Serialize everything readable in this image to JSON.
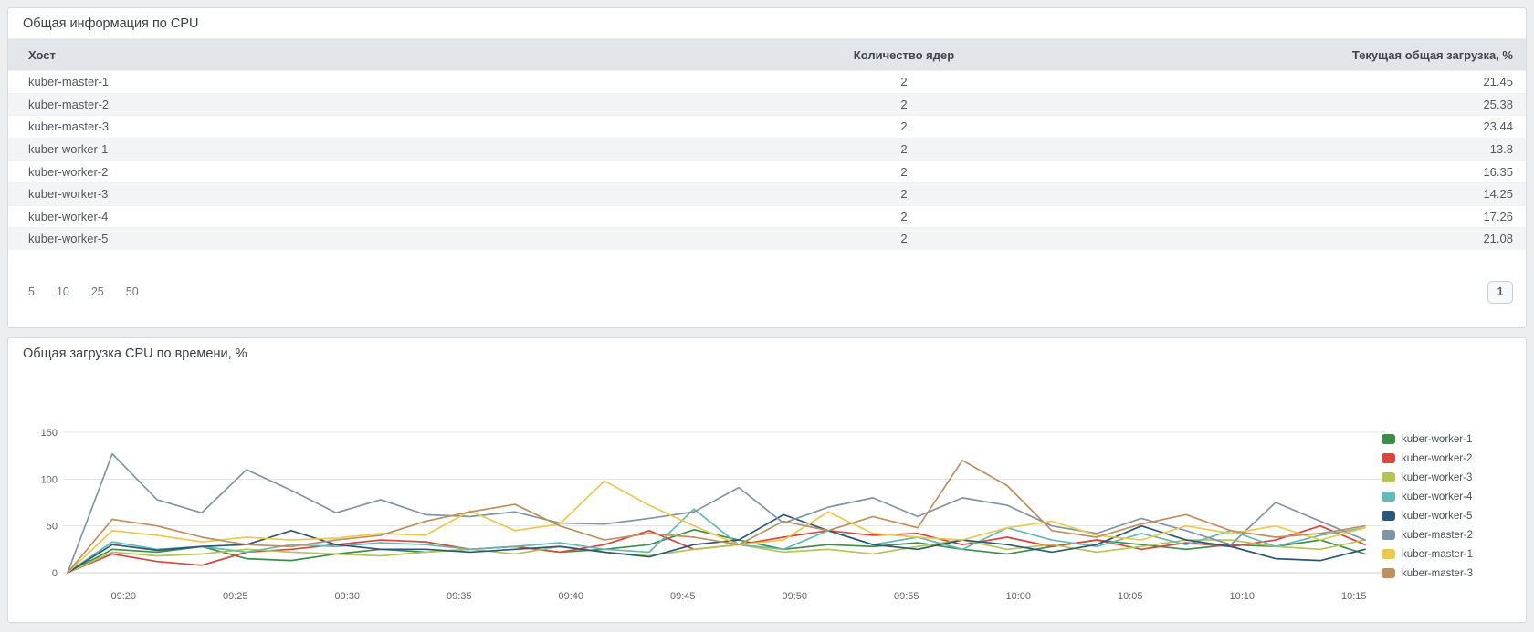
{
  "table_panel": {
    "title": "Общая информация по CPU",
    "columns": {
      "host": "Хост",
      "cores": "Количество ядер",
      "load": "Текущая общая загрузка, %"
    },
    "rows": [
      {
        "host": "kuber-master-1",
        "cores": "2",
        "load": "21.45"
      },
      {
        "host": "kuber-master-2",
        "cores": "2",
        "load": "25.38"
      },
      {
        "host": "kuber-master-3",
        "cores": "2",
        "load": "23.44"
      },
      {
        "host": "kuber-worker-1",
        "cores": "2",
        "load": "13.8"
      },
      {
        "host": "kuber-worker-2",
        "cores": "2",
        "load": "16.35"
      },
      {
        "host": "kuber-worker-3",
        "cores": "2",
        "load": "14.25"
      },
      {
        "host": "kuber-worker-4",
        "cores": "2",
        "load": "17.26"
      },
      {
        "host": "kuber-worker-5",
        "cores": "2",
        "load": "21.08"
      }
    ],
    "page_sizes": [
      "5",
      "10",
      "25",
      "50"
    ],
    "current_page": "1"
  },
  "chart_panel": {
    "title": "Общая загрузка CPU по времени, %",
    "chart_data": {
      "type": "line",
      "title": "Общая загрузка CPU по времени, %",
      "ylabel": "",
      "xlabel": "",
      "ylim": [
        0,
        150
      ],
      "y_ticks": [
        0,
        50,
        100,
        150
      ],
      "grid": "horizontal",
      "legend_position": "right",
      "x_tick_labels": [
        "09:20",
        "09:25",
        "09:30",
        "09:35",
        "09:40",
        "09:45",
        "09:50",
        "09:55",
        "10:00",
        "10:05",
        "10:10",
        "10:15"
      ],
      "x_tick_offsets_min": [
        2.5,
        7.5,
        12.5,
        17.5,
        22.5,
        27.5,
        32.5,
        37.5,
        42.5,
        47.5,
        52.5,
        57.5
      ],
      "x_minutes_offset": [
        0,
        2,
        4,
        6,
        8,
        10,
        12,
        14,
        16,
        18,
        20,
        22,
        24,
        26,
        28,
        30,
        32,
        34,
        36,
        38,
        40,
        42,
        44,
        46,
        48,
        50,
        52,
        54,
        56,
        58
      ],
      "series": [
        {
          "name": "kuber-worker-1",
          "color": "#3e8e4a",
          "values": [
            0,
            25,
            22,
            28,
            15,
            13,
            20,
            25,
            22,
            25,
            28,
            22,
            25,
            30,
            46,
            35,
            25,
            30,
            28,
            32,
            25,
            20,
            28,
            35,
            30,
            25,
            30,
            28,
            35,
            20
          ]
        },
        {
          "name": "kuber-worker-2",
          "color": "#d8463c",
          "values": [
            0,
            20,
            12,
            8,
            22,
            25,
            30,
            35,
            33,
            25,
            28,
            22,
            30,
            45,
            25,
            30,
            38,
            45,
            40,
            42,
            30,
            38,
            28,
            35,
            25,
            32,
            28,
            35,
            50,
            30
          ]
        },
        {
          "name": "kuber-worker-3",
          "color": "#b5c454",
          "values": [
            0,
            22,
            18,
            20,
            25,
            22,
            20,
            18,
            22,
            25,
            20,
            28,
            22,
            18,
            25,
            30,
            22,
            25,
            20,
            28,
            35,
            25,
            30,
            22,
            28,
            35,
            35,
            28,
            25,
            35
          ]
        },
        {
          "name": "kuber-worker-4",
          "color": "#62bab3",
          "values": [
            0,
            33,
            25,
            28,
            22,
            30,
            28,
            32,
            30,
            25,
            28,
            32,
            25,
            22,
            68,
            30,
            25,
            45,
            30,
            38,
            25,
            48,
            35,
            28,
            42,
            30,
            45,
            28,
            40,
            48
          ]
        },
        {
          "name": "kuber-worker-5",
          "color": "#2b5876",
          "values": [
            0,
            30,
            24,
            28,
            30,
            45,
            30,
            25,
            25,
            22,
            25,
            28,
            22,
            17,
            30,
            35,
            62,
            45,
            30,
            25,
            35,
            30,
            22,
            30,
            50,
            35,
            28,
            15,
            13,
            25
          ]
        },
        {
          "name": "kuber-master-2",
          "color": "#8195a3",
          "values": [
            0,
            127,
            78,
            64,
            110,
            88,
            64,
            78,
            62,
            60,
            65,
            53,
            52,
            58,
            65,
            91,
            53,
            70,
            80,
            60,
            80,
            72,
            50,
            42,
            58,
            45,
            30,
            75,
            55,
            35
          ]
        },
        {
          "name": "kuber-master-1",
          "color": "#ecc94b",
          "values": [
            0,
            45,
            40,
            33,
            38,
            35,
            37,
            42,
            40,
            66,
            45,
            52,
            98,
            72,
            50,
            30,
            35,
            65,
            42,
            38,
            35,
            48,
            55,
            40,
            35,
            50,
            42,
            50,
            35,
            48
          ]
        },
        {
          "name": "kuber-master-3",
          "color": "#c08f5f",
          "values": [
            0,
            57,
            50,
            38,
            30,
            28,
            35,
            40,
            55,
            65,
            73,
            50,
            35,
            42,
            38,
            30,
            55,
            45,
            60,
            48,
            120,
            93,
            45,
            38,
            52,
            62,
            45,
            38,
            42,
            50
          ]
        }
      ]
    }
  },
  "colors": {
    "page_bg": "#eceeef",
    "panel_border": "#d8dbde",
    "table_header_bg": "#e2e5e9",
    "row_stripe": "#f3f4f6",
    "grid_line": "#e3e3e3",
    "zero_line": "#cfd2d4",
    "axis_text": "#5f6469"
  }
}
